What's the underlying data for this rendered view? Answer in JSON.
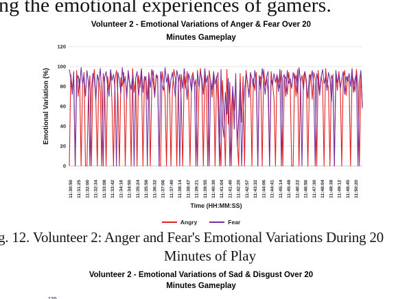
{
  "body_text": "ng the emotional experiences of gamers.",
  "caption": {
    "line1": "g. 12. Volunteer 2: Anger and Fear's Emotional Variations During 20",
    "line2": "Minutes of Play"
  },
  "next_chart": {
    "title_line1": "Volunteer 2 - Emotional Variations of Sad & Disgust Over 20",
    "title_line2": "Minutes Gameplay",
    "partial_ytick": "120"
  },
  "chart_data": {
    "type": "line",
    "title_line1": "Volunteer 2 - Emotional Variations of Anger & Fear Over 20",
    "title_line2": "Minutes Gameplay",
    "xlabel": "Time (HH:MM:SS)",
    "ylabel": "Emotional Variation (%)",
    "ylim": [
      0,
      120
    ],
    "ytick_step": 20,
    "yticks": [
      0,
      20,
      40,
      60,
      80,
      100,
      120
    ],
    "grid": true,
    "legend_position": "bottom",
    "values_estimated": true,
    "xticklabels": [
      "11:30:50",
      "11:31:25",
      "11:32:00",
      "11:32:34",
      "11:33:08",
      "11:33:42",
      "11:34:16",
      "11:34:50",
      "11:35:24",
      "11:35:58",
      "11:36:32",
      "11:37:06",
      "11:37:40",
      "11:38:14",
      "11:38:47",
      "11:39:21",
      "11:39:55",
      "11:40:30",
      "11:41:04",
      "11:41:40",
      "11:42:20",
      "11:42:57",
      "11:43:32",
      "11:44:06",
      "11:44:41",
      "11:45:14",
      "11:45:49",
      "11:46:22",
      "11:46:56",
      "11:47:30",
      "11:48:04",
      "11:48:38",
      "11:49:12",
      "11:49:45",
      "11:50:20"
    ],
    "legend": [
      {
        "name": "Angry",
        "color": "#e02020"
      },
      {
        "name": "Fear",
        "color": "#7030a0"
      }
    ],
    "series": [
      {
        "name": "Angry",
        "color": "#e02020",
        "values": [
          0,
          92,
          78,
          85,
          0,
          96,
          70,
          88,
          0,
          81,
          94,
          0,
          0,
          73,
          91,
          0,
          84,
          97,
          68,
          0,
          88,
          75,
          0,
          93,
          82,
          0,
          90,
          77,
          95,
          64,
          0,
          87,
          96,
          71,
          0,
          89,
          80,
          94,
          0,
          76,
          92,
          83,
          0,
          98,
          74,
          87,
          0,
          91,
          79,
          95,
          0,
          85,
          90,
          67,
          94,
          0,
          82,
          96,
          73,
          88,
          91,
          0,
          0,
          95,
          86,
          70,
          0,
          93,
          84,
          0,
          76,
          97,
          88,
          0,
          83,
          92,
          66,
          0,
          90,
          78,
          95,
          72,
          0,
          89,
          94,
          80,
          87,
          0,
          75,
          98,
          83,
          0,
          91,
          77,
          0,
          96,
          85,
          69,
          92,
          0,
          88,
          94,
          35,
          0,
          86,
          51,
          0,
          97,
          42,
          84,
          0,
          78,
          56,
          87,
          25,
          0,
          93,
          44,
          90,
          0,
          96,
          84,
          71,
          92,
          0,
          88,
          76,
          94,
          0,
          86,
          90,
          0,
          97,
          81,
          89,
          74,
          0,
          95,
          83,
          68,
          0,
          92,
          85,
          78,
          96,
          0,
          87,
          90,
          72,
          94,
          81,
          0,
          0,
          93,
          70,
          97,
          0,
          84,
          91,
          77,
          95,
          86,
          0,
          80,
          92,
          67,
          94,
          88,
          0,
          96,
          74,
          90,
          83,
          0,
          98,
          85,
          79,
          0,
          91,
          87,
          0,
          93,
          76,
          95,
          82,
          0,
          88,
          96,
          71,
          90,
          84,
          0,
          92,
          86,
          75,
          97,
          80,
          0,
          94,
          60
        ]
      },
      {
        "name": "Fear",
        "color": "#7030a0",
        "values": [
          97,
          88,
          72,
          95,
          0,
          86,
          91,
          78,
          99,
          83,
          90,
          70,
          96,
          84,
          0,
          77,
          93,
          88,
          66,
          92,
          85,
          98,
          74,
          0,
          89,
          95,
          81,
          70,
          97,
          86,
          92,
          79,
          0,
          94,
          87,
          73,
          99,
          82,
          90,
          68,
          96,
          84,
          77,
          91,
          0,
          88,
          95,
          71,
          83,
          98,
          74,
          90,
          86,
          0,
          93,
          79,
          97,
          85,
          69,
          92,
          88,
          0,
          95,
          81,
          76,
          99,
          84,
          91,
          73,
          87,
          94,
          82,
          70,
          96,
          89,
          0,
          92,
          78,
          98,
          85,
          67,
          93,
          87,
          75,
          91,
          83,
          0,
          96,
          80,
          94,
          89,
          72,
          98,
          84,
          91,
          0,
          86,
          77,
          95,
          82,
          90,
          66,
          0,
          97,
          43,
          29,
          74,
          52,
          88,
          0,
          55,
          80,
          37,
          93,
          21,
          48,
          84,
          0,
          50,
          76,
          92,
          85,
          69,
          94,
          88,
          79,
          96,
          83,
          0,
          91,
          77,
          98,
          86,
          72,
          90,
          95,
          0,
          87,
          81,
          93,
          84,
          91,
          75,
          97,
          0,
          89,
          92,
          70,
          96,
          83,
          88,
          78,
          94,
          86,
          91,
          73,
          99,
          85,
          0,
          90,
          95,
          82,
          68,
          92,
          87,
          96,
          79,
          0,
          93,
          86,
          71,
          89,
          97,
          83,
          90,
          76,
          94,
          88,
          65,
          92,
          0,
          96,
          84,
          91,
          78,
          87,
          95,
          72,
          90,
          85,
          93,
          80,
          98,
          74,
          88,
          92,
          0,
          86,
          96,
          58
        ]
      }
    ]
  }
}
